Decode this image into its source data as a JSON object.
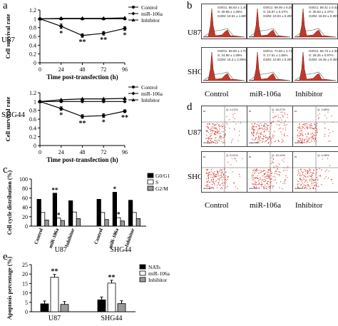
{
  "panels": {
    "a": "a",
    "b": "b",
    "c": "c",
    "d": "d",
    "e": "e"
  },
  "chart_data": [
    {
      "id": "a-u87",
      "type": "line",
      "row_label": "U87",
      "xlabel": "Time post-transfection (h)",
      "ylabel": "Cell survival rate",
      "x": [
        0,
        24,
        48,
        72,
        96
      ],
      "xlim": [
        0,
        96
      ],
      "ylim": [
        0,
        1.2
      ],
      "yticks": [
        "0",
        "0.2",
        "0.4",
        "0.6",
        "0.8",
        "1",
        "1.2"
      ],
      "series": [
        {
          "name": "Control",
          "values": [
            1,
            1,
            1,
            1,
            1
          ],
          "marker": "circle"
        },
        {
          "name": "miR-106a",
          "values": [
            1,
            0.83,
            0.62,
            0.67,
            0.78
          ],
          "marker": "diamond",
          "errors": [
            0,
            0.05,
            0.04,
            0.04,
            0.04
          ]
        },
        {
          "name": "Inhibitor",
          "values": [
            1,
            1.01,
            1.01,
            1.01,
            1.02
          ],
          "marker": "triangle"
        }
      ],
      "annotations": [
        {
          "x": 24,
          "text": "*"
        },
        {
          "x": 48,
          "text": "**"
        },
        {
          "x": 72,
          "text": "**"
        },
        {
          "x": 96,
          "text": "*"
        }
      ]
    },
    {
      "id": "a-shg44",
      "type": "line",
      "row_label": "SHG44",
      "xlabel": "Time post-transfection (h)",
      "ylabel": "Cell survival rate",
      "x": [
        0,
        24,
        48,
        72,
        96
      ],
      "xlim": [
        0,
        96
      ],
      "ylim": [
        0,
        1.2
      ],
      "yticks": [
        "0",
        "0.2",
        "0.4",
        "0.6",
        "0.8",
        "1",
        "1.2"
      ],
      "series": [
        {
          "name": "Control",
          "values": [
            1,
            1,
            1,
            1,
            1
          ],
          "marker": "circle"
        },
        {
          "name": "miR-106a",
          "values": [
            1,
            0.84,
            0.66,
            0.68,
            0.78
          ],
          "marker": "diamond",
          "errors": [
            0,
            0.04,
            0.04,
            0.04,
            0.03
          ]
        },
        {
          "name": "Inhibitor",
          "values": [
            1,
            1.04,
            1.06,
            1.06,
            1.07
          ],
          "marker": "triangle"
        }
      ],
      "annotations": [
        {
          "x": 24,
          "text": "*"
        },
        {
          "x": 48,
          "text": "**"
        },
        {
          "x": 72,
          "text": "*"
        },
        {
          "x": 96,
          "text": "**"
        }
      ]
    },
    {
      "id": "c",
      "type": "bar",
      "ylabel": "Cell cycle distribution (%)",
      "ylim": [
        0,
        100
      ],
      "yticks": [
        "0",
        "20",
        "40",
        "60",
        "80",
        "100"
      ],
      "group_labels": [
        "U87",
        "SHG44"
      ],
      "subcategories": [
        "Control",
        "miR-106a",
        "Inhibitor"
      ],
      "series": [
        {
          "name": "G0/G1",
          "color": "#000000",
          "values": [
            [
              57,
              70,
              54
            ],
            [
              57,
              72,
              55
            ]
          ]
        },
        {
          "name": "S",
          "color": "#ffffff",
          "values": [
            [
              29,
              17,
              30
            ],
            [
              29,
              18,
              29
            ]
          ]
        },
        {
          "name": "G2/M",
          "color": "#999999",
          "values": [
            [
              13,
              12,
              16
            ],
            [
              14,
              11,
              16
            ]
          ]
        }
      ],
      "annotations": [
        {
          "group": 0,
          "sub": 1,
          "series": 0,
          "text": "**"
        },
        {
          "group": 0,
          "sub": 1,
          "series": 1,
          "text": "*"
        },
        {
          "group": 1,
          "sub": 1,
          "series": 0,
          "text": "*"
        },
        {
          "group": 1,
          "sub": 1,
          "series": 1,
          "text": "*"
        }
      ]
    },
    {
      "id": "e",
      "type": "bar",
      "ylabel": "Apoptosis percentage (%)",
      "ylim": [
        0,
        25
      ],
      "yticks": [
        "0",
        "5",
        "10",
        "15",
        "20",
        "25"
      ],
      "categories": [
        "U87",
        "SHG44"
      ],
      "series": [
        {
          "name": "NATs",
          "color": "#000000",
          "values": [
            4.2,
            6.3
          ]
        },
        {
          "name": "miR-106a",
          "color": "#ffffff",
          "values": [
            18.3,
            15.2
          ]
        },
        {
          "name": "Inhibitor",
          "color": "#999999",
          "values": [
            3.9,
            4.3
          ]
        }
      ],
      "annotations": [
        {
          "category": 0,
          "series": 1,
          "text": "**"
        },
        {
          "category": 1,
          "series": 1,
          "text": "**"
        }
      ]
    }
  ],
  "panel_b": {
    "rows": [
      "U87",
      "SHG44"
    ],
    "columns": [
      "Control",
      "miR-106a",
      "Inhibitor"
    ],
    "stats": [
      [
        [
          "G0/G1: 55.63 ± 1.40%",
          "S: 28.96 ± 1.08%",
          "G2/M: 13.61 ± 1.68%"
        ],
        [
          "G0/G1: 69.00 ± 0.29%",
          "S: 16.67 ± 0.27%",
          "G2/M: 10.03 ± 0.25%"
        ],
        [
          "G0/G1: 58.41 ± 0.42%",
          "S: 30.63 ± 2.37%",
          "G2/M: 16.03 ± 0.35%"
        ]
      ],
      [
        [
          "G0/G1: 55.90 ± 1.70%",
          "S: 24.98 ± 1.09%",
          "G2/M: 15.2 ± 2.09%"
        ],
        [
          "G0/G1: 71.60 ± 1.71%",
          "S: 17.51 ± 1.55%",
          "G2/M: 10.80 ± 0.25%"
        ],
        [
          "G0/G1: 56.73 ± 2.35%",
          "S: 28.25 ± 0.97%",
          "G2/M: 16.45 ± 0.35%"
        ]
      ]
    ]
  },
  "panel_d": {
    "rows": [
      "U87",
      "SHG44"
    ],
    "columns": [
      "Control",
      "miR-106a",
      "Inhibitor"
    ],
    "axis_x": "Annexin V",
    "axis_y": "PI",
    "quad": [
      [
        "Q: 4.12%",
        "Q: 18.27%",
        "Q: 3.85%"
      ],
      [
        "Q: 6.31%",
        "Q: 15.14%",
        "Q: 4.28%"
      ]
    ]
  }
}
